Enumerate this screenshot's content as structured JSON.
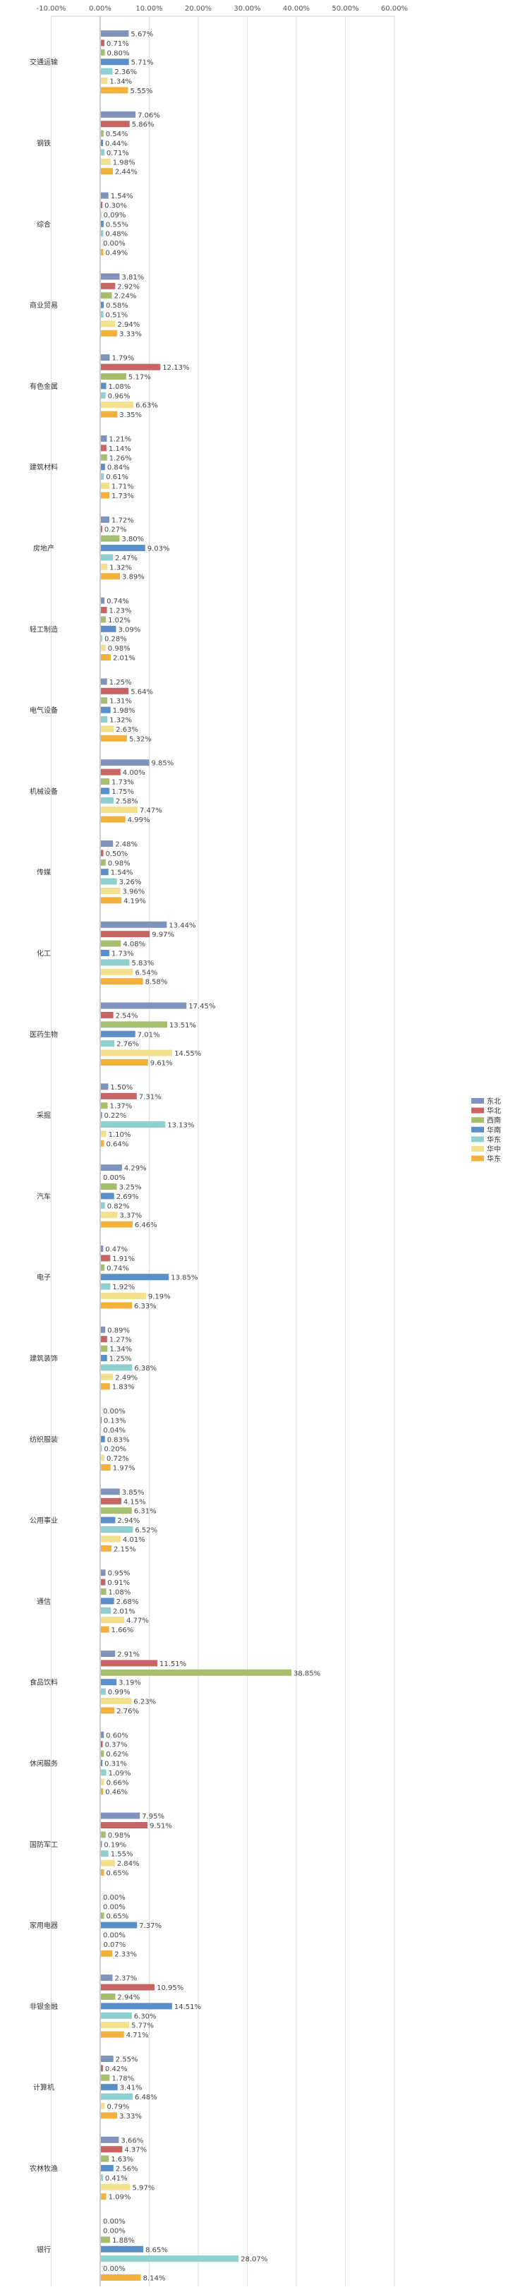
{
  "chart_data": {
    "type": "bar",
    "orientation": "horizontal",
    "xlim": [
      -10,
      60
    ],
    "xticks": [
      "-10.00%",
      "0.00%",
      "10.00%",
      "20.00%",
      "30.00%",
      "40.00%",
      "50.00%",
      "60.00%"
    ],
    "grid": true,
    "legend_position": "right",
    "categories": [
      "交通运输",
      "钢铁",
      "综合",
      "商业贸易",
      "有色金属",
      "建筑材料",
      "房地产",
      "轻工制造",
      "电气设备",
      "机械设备",
      "传媒",
      "化工",
      "医药生物",
      "采掘",
      "汽车",
      "电子",
      "建筑装饰",
      "纺织服装",
      "公用事业",
      "通信",
      "食品饮料",
      "休闲服务",
      "国防军工",
      "家用电器",
      "非银金融",
      "计算机",
      "农林牧渔",
      "银行"
    ],
    "series": [
      {
        "name": "东北",
        "color": "#7f93bd",
        "values": [
          5.67,
          7.06,
          1.54,
          3.81,
          1.79,
          1.21,
          1.72,
          0.74,
          1.25,
          9.85,
          2.48,
          13.44,
          17.45,
          1.5,
          4.29,
          0.47,
          0.89,
          0.0,
          3.85,
          0.95,
          2.91,
          0.6,
          7.95,
          0.0,
          2.37,
          2.55,
          3.66,
          0.0
        ]
      },
      {
        "name": "华北",
        "color": "#c86464",
        "values": [
          0.71,
          5.86,
          0.3,
          2.92,
          12.13,
          1.14,
          0.27,
          1.23,
          5.64,
          4.0,
          0.5,
          9.97,
          2.54,
          7.31,
          0.0,
          1.91,
          1.27,
          0.13,
          4.15,
          0.91,
          11.51,
          0.37,
          9.51,
          0.0,
          10.95,
          0.42,
          4.37,
          0.0
        ]
      },
      {
        "name": "西南",
        "color": "#a6bf6e",
        "values": [
          0.8,
          0.54,
          0.09,
          2.24,
          5.17,
          1.26,
          3.8,
          1.02,
          1.31,
          1.73,
          0.98,
          4.08,
          13.51,
          1.37,
          3.25,
          0.74,
          1.34,
          0.04,
          6.31,
          1.08,
          38.85,
          0.62,
          0.98,
          0.65,
          2.94,
          1.78,
          1.63,
          1.88
        ]
      },
      {
        "name": "华南",
        "color": "#5b8fc9",
        "values": [
          5.71,
          0.44,
          0.55,
          0.58,
          1.08,
          0.84,
          9.03,
          3.09,
          1.98,
          1.75,
          1.54,
          1.73,
          7.01,
          0.22,
          2.69,
          13.85,
          1.25,
          0.83,
          2.94,
          2.68,
          3.19,
          0.31,
          0.19,
          7.37,
          14.51,
          3.41,
          2.56,
          8.65
        ]
      },
      {
        "name": "华东",
        "color": "#8ecfd0",
        "values": [
          2.36,
          0.71,
          0.48,
          0.51,
          0.96,
          0.61,
          2.47,
          0.28,
          1.32,
          2.58,
          3.26,
          5.83,
          2.76,
          13.13,
          0.82,
          1.92,
          6.38,
          0.2,
          6.52,
          2.01,
          0.99,
          1.09,
          1.55,
          0.0,
          6.3,
          6.48,
          0.41,
          28.07
        ]
      },
      {
        "name": "华中",
        "color": "#f2e08c",
        "values": [
          1.34,
          1.98,
          0.0,
          2.94,
          6.63,
          1.71,
          1.32,
          0.98,
          2.63,
          7.47,
          3.96,
          6.54,
          14.55,
          1.1,
          3.37,
          9.19,
          2.49,
          0.72,
          4.01,
          4.77,
          6.23,
          0.66,
          2.84,
          0.07,
          5.77,
          0.79,
          5.97,
          0.0
        ]
      },
      {
        "name": "华东",
        "color": "#f2b13c",
        "values": [
          5.55,
          2.44,
          0.49,
          3.33,
          3.35,
          1.73,
          3.89,
          2.01,
          5.32,
          4.99,
          4.19,
          8.58,
          9.61,
          0.64,
          6.46,
          6.33,
          1.83,
          1.97,
          2.15,
          1.66,
          2.76,
          0.46,
          0.65,
          2.33,
          4.71,
          3.33,
          1.09,
          8.14
        ]
      }
    ]
  }
}
